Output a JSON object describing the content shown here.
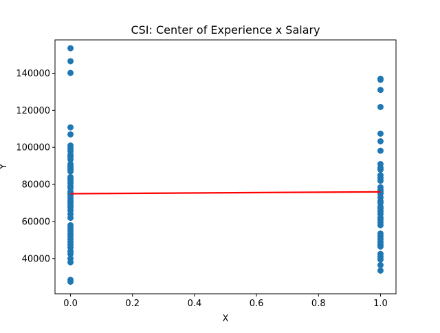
{
  "chart_data": {
    "type": "scatter",
    "title": "CSI: Center of Experience x Salary",
    "xlabel": "X",
    "ylabel": "Y",
    "xlim": [
      -0.05,
      1.05
    ],
    "ylim": [
      21000,
      158000
    ],
    "xticks": [
      0.0,
      0.2,
      0.4,
      0.6,
      0.8,
      1.0
    ],
    "xtick_labels": [
      "0.0",
      "0.2",
      "0.4",
      "0.6",
      "0.8",
      "1.0"
    ],
    "yticks": [
      40000,
      60000,
      80000,
      100000,
      120000,
      140000
    ],
    "ytick_labels": [
      "40000",
      "60000",
      "80000",
      "100000",
      "120000",
      "140000"
    ],
    "grid": false,
    "legend": "none",
    "series": [
      {
        "kind": "scatter",
        "color": "#1f77b4",
        "points": [
          [
            0,
            153500
          ],
          [
            0,
            146500
          ],
          [
            0,
            140200
          ],
          [
            0,
            110800
          ],
          [
            0,
            107000
          ],
          [
            0,
            101000
          ],
          [
            0,
            99500
          ],
          [
            0,
            98000
          ],
          [
            0,
            96000
          ],
          [
            0,
            95000
          ],
          [
            0,
            93500
          ],
          [
            0,
            91000
          ],
          [
            0,
            90000
          ],
          [
            0,
            89000
          ],
          [
            0,
            88000
          ],
          [
            0,
            87000
          ],
          [
            0,
            84000
          ],
          [
            0,
            83000
          ],
          [
            0,
            82000
          ],
          [
            0,
            80500
          ],
          [
            0,
            79000
          ],
          [
            0,
            78000
          ],
          [
            0,
            76000
          ],
          [
            0,
            75000
          ],
          [
            0,
            74000
          ],
          [
            0,
            72500
          ],
          [
            0,
            71000
          ],
          [
            0,
            70000
          ],
          [
            0,
            68500
          ],
          [
            0,
            67500
          ],
          [
            0,
            66000
          ],
          [
            0,
            64000
          ],
          [
            0,
            62000
          ],
          [
            0,
            58000
          ],
          [
            0,
            56500
          ],
          [
            0,
            55000
          ],
          [
            0,
            53500
          ],
          [
            0,
            52000
          ],
          [
            0,
            50500
          ],
          [
            0,
            49000
          ],
          [
            0,
            47500
          ],
          [
            0,
            46000
          ],
          [
            0,
            44000
          ],
          [
            0,
            42500
          ],
          [
            0,
            40000
          ],
          [
            0,
            38000
          ],
          [
            0,
            28500
          ],
          [
            0,
            27500
          ],
          [
            1,
            137000
          ],
          [
            1,
            136500
          ],
          [
            1,
            131000
          ],
          [
            1,
            121800
          ],
          [
            1,
            107400
          ],
          [
            1,
            103300
          ],
          [
            1,
            98200
          ],
          [
            1,
            91000
          ],
          [
            1,
            89000
          ],
          [
            1,
            88000
          ],
          [
            1,
            85000
          ],
          [
            1,
            83500
          ],
          [
            1,
            82000
          ],
          [
            1,
            78500
          ],
          [
            1,
            77000
          ],
          [
            1,
            76000
          ],
          [
            1,
            75000
          ],
          [
            1,
            73000
          ],
          [
            1,
            71000
          ],
          [
            1,
            70000
          ],
          [
            1,
            68000
          ],
          [
            1,
            67000
          ],
          [
            1,
            65500
          ],
          [
            1,
            64000
          ],
          [
            1,
            62000
          ],
          [
            1,
            61000
          ],
          [
            1,
            59500
          ],
          [
            1,
            58000
          ],
          [
            1,
            53500
          ],
          [
            1,
            52000
          ],
          [
            1,
            50500
          ],
          [
            1,
            49000
          ],
          [
            1,
            47500
          ],
          [
            1,
            46500
          ],
          [
            1,
            42500
          ],
          [
            1,
            41000
          ],
          [
            1,
            39500
          ],
          [
            1,
            36500
          ],
          [
            1,
            33500
          ]
        ]
      },
      {
        "kind": "line",
        "color": "#ff0000",
        "x": [
          0,
          1
        ],
        "y": [
          75000,
          76000
        ]
      }
    ]
  }
}
